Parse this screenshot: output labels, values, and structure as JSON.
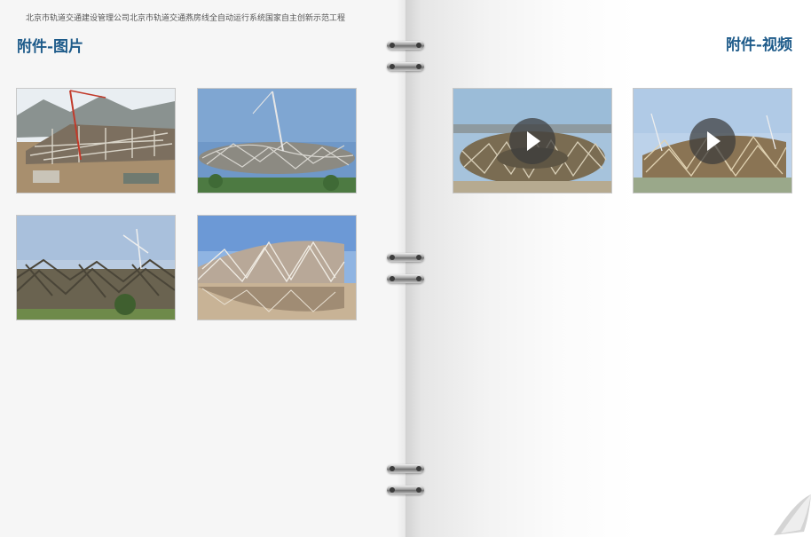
{
  "header": {
    "text": "北京市轨道交通建设管理公司北京市轨道交通燕房线全自动运行系统国家自主创新示范工程"
  },
  "left_page": {
    "title": "附件-图片",
    "images": [
      {
        "subject": "stadium-construction-cranes"
      },
      {
        "subject": "stadium-steel-frame-crane"
      },
      {
        "subject": "stadium-steel-lattice-cranes"
      },
      {
        "subject": "birds-nest-stadium-reflection"
      }
    ]
  },
  "right_page": {
    "title": "附件-视频",
    "videos": [
      {
        "subject": "birds-nest-construction-video",
        "icon": "play-icon"
      },
      {
        "subject": "birds-nest-construction-video",
        "icon": "play-icon"
      }
    ]
  },
  "colors": {
    "title": "#1e5b8a",
    "header_text": "#555555",
    "left_page_bg": "#f6f6f6"
  }
}
